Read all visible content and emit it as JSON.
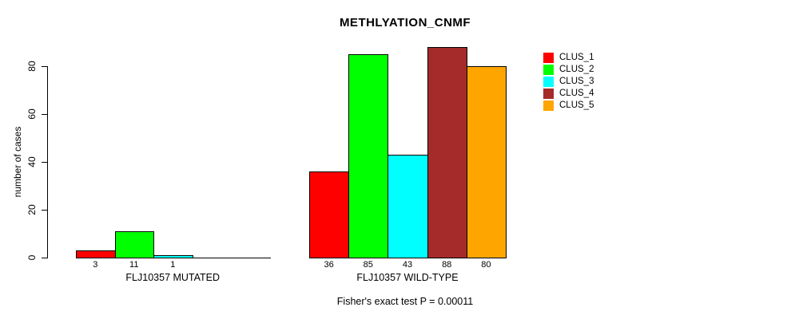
{
  "chart_data": {
    "type": "bar",
    "title": "METHLYATION_CNMF",
    "ylabel": "number of cases",
    "xlabel": "",
    "ylim": [
      0,
      88
    ],
    "yticks": [
      0,
      20,
      40,
      60,
      80
    ],
    "grid": false,
    "legend_position": "right",
    "categories": [
      "FLJ10357 MUTATED",
      "FLJ10357 WILD-TYPE"
    ],
    "series": [
      {
        "name": "CLUS_1",
        "color": "#ff0000",
        "values": [
          3,
          36
        ]
      },
      {
        "name": "CLUS_2",
        "color": "#00ff00",
        "values": [
          11,
          85
        ]
      },
      {
        "name": "CLUS_3",
        "color": "#00ffff",
        "values": [
          1,
          43
        ]
      },
      {
        "name": "CLUS_4",
        "color": "#a52a2a",
        "values": [
          0,
          88
        ]
      },
      {
        "name": "CLUS_5",
        "color": "#ffa500",
        "values": [
          0,
          80
        ]
      }
    ],
    "bar_value_labels": {
      "FLJ10357 MUTATED": [
        "3",
        "11",
        "1",
        "",
        ""
      ],
      "FLJ10357 WILD-TYPE": [
        "36",
        "85",
        "43",
        "88",
        "80"
      ]
    },
    "annotation": "Fisher's exact test P = 0.00011",
    "axis_color": "#000000",
    "background_color": "#ffffff"
  }
}
